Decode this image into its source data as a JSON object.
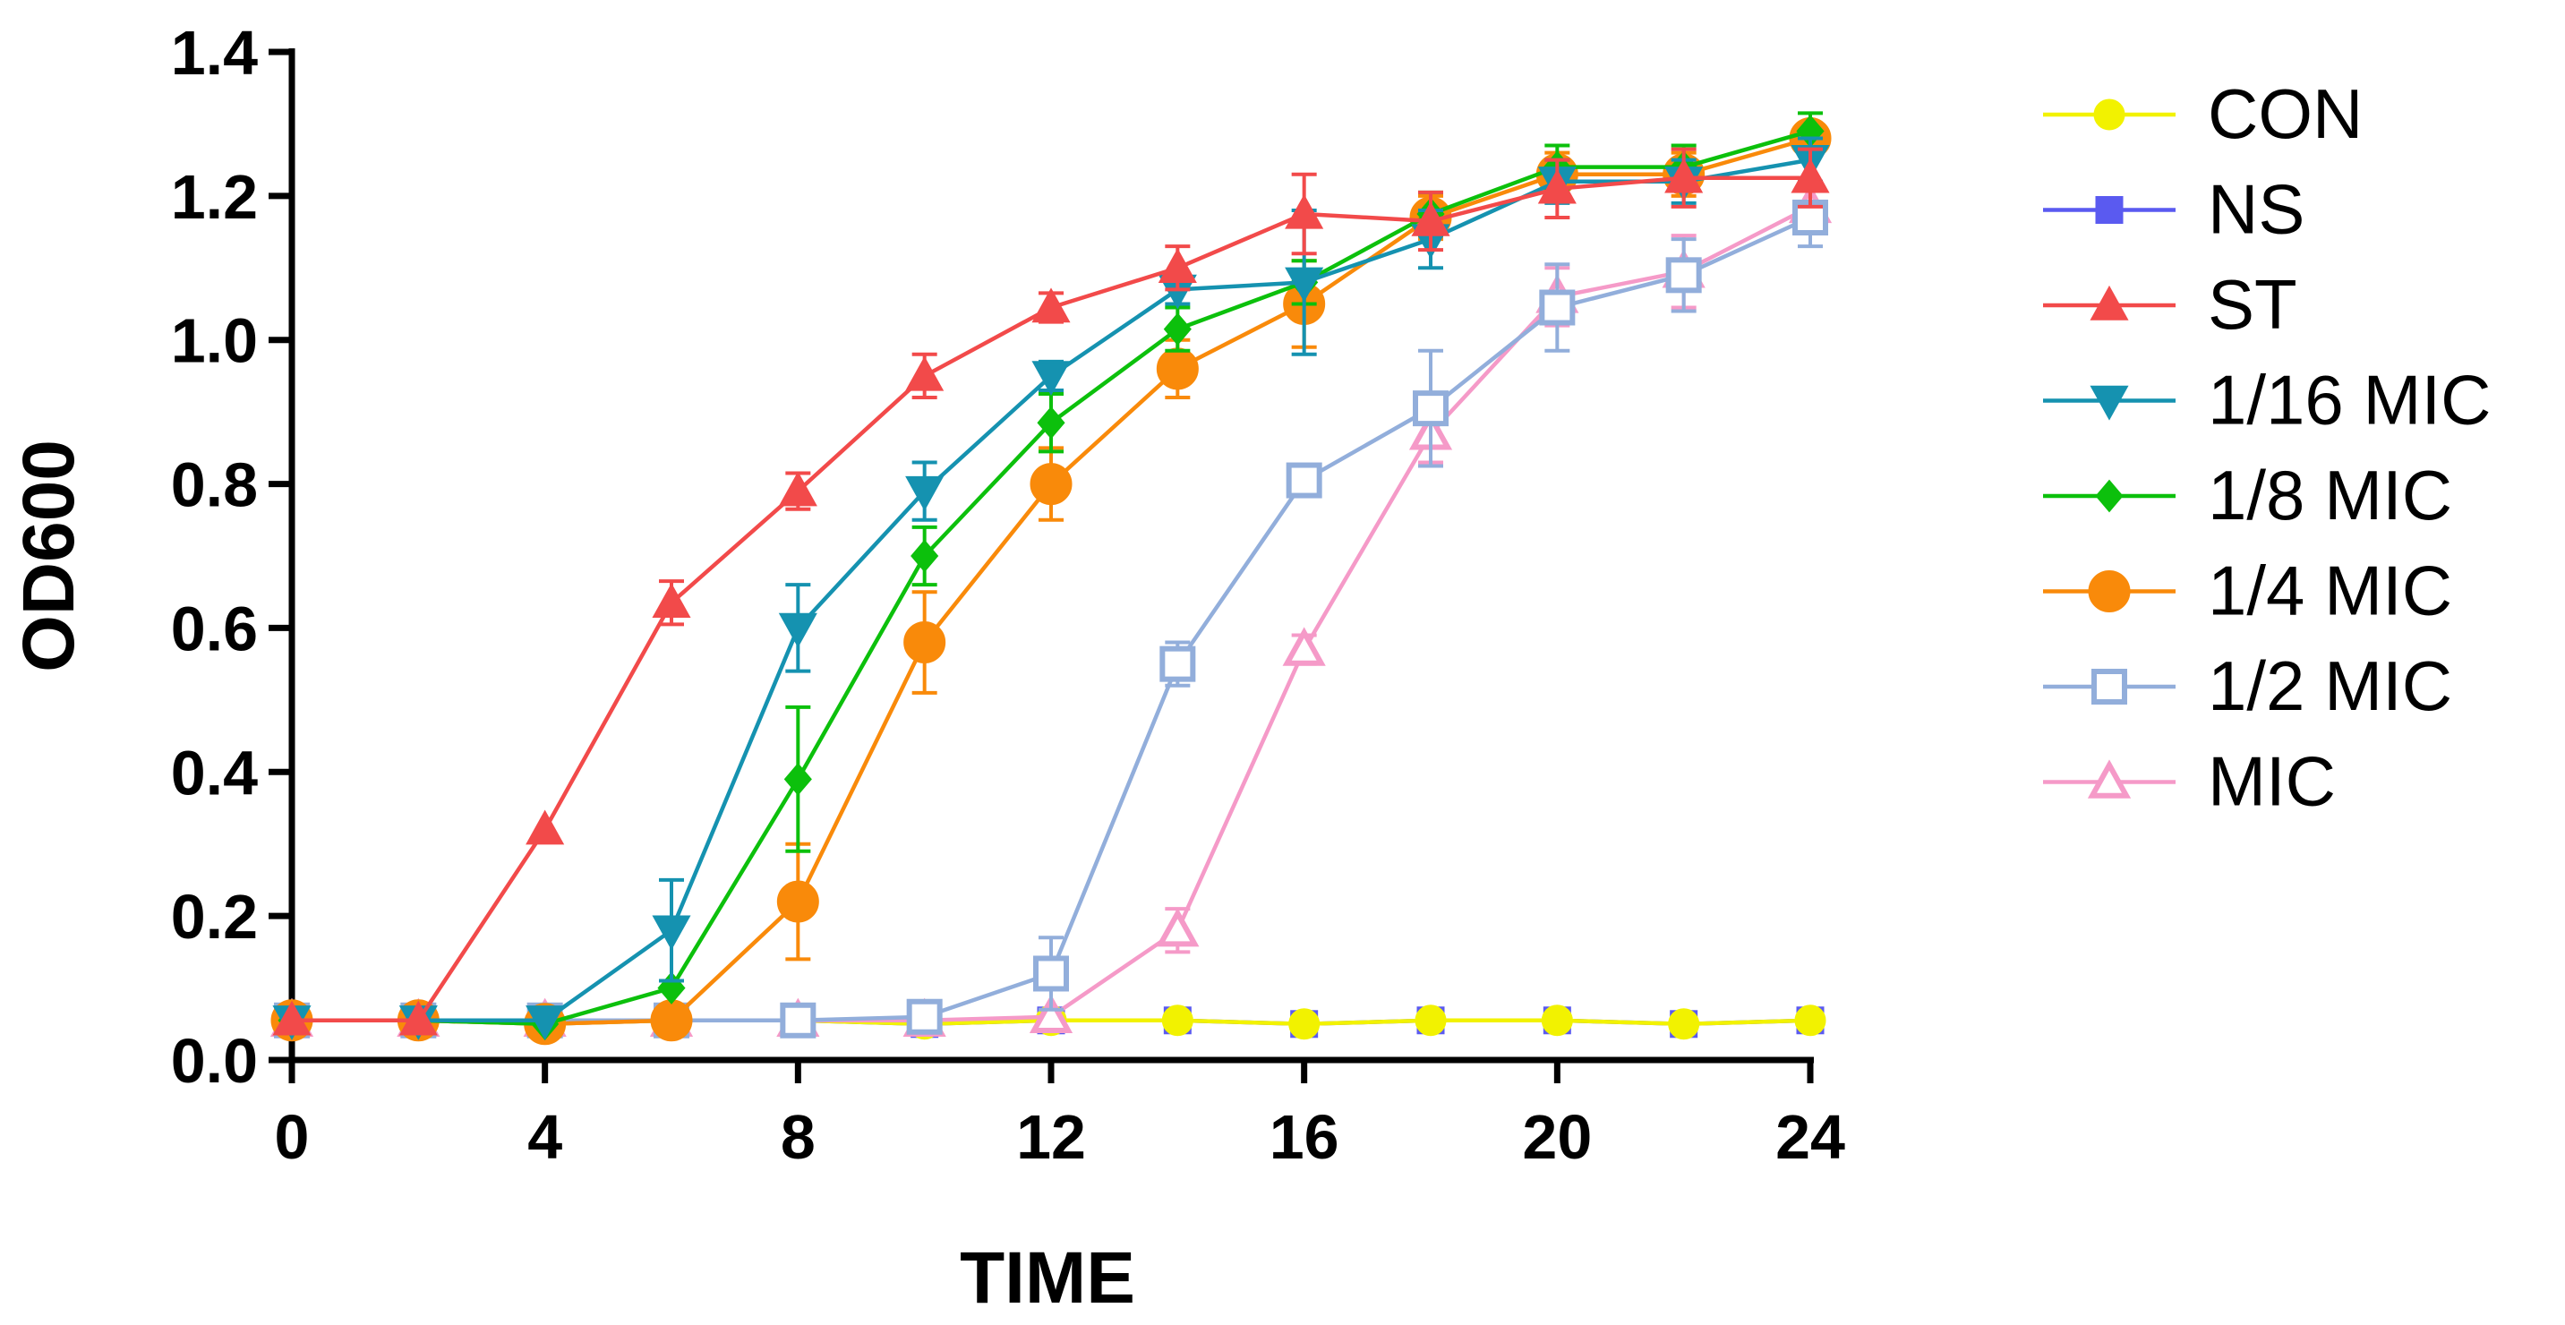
{
  "chart_data": {
    "type": "line",
    "title": "",
    "xlabel": "TIME",
    "ylabel": "OD600",
    "xlim": [
      0,
      24
    ],
    "ylim": [
      0,
      1.4
    ],
    "xticks": [
      "0",
      "4",
      "8",
      "12",
      "16",
      "20",
      "24"
    ],
    "yticks": [
      "0.0",
      "0.2",
      "0.4",
      "0.6",
      "0.8",
      "1.0",
      "1.2",
      "1.4"
    ],
    "x": [
      0,
      2,
      4,
      6,
      8,
      10,
      12,
      14,
      16,
      18,
      20,
      22,
      24
    ],
    "legend_position": "right",
    "series": [
      {
        "name": "NS",
        "color": "#5a5af0",
        "marker": "square",
        "filled": true,
        "values": [
          0.055,
          0.055,
          0.05,
          0.055,
          0.055,
          0.05,
          0.055,
          0.055,
          0.05,
          0.055,
          0.055,
          0.05,
          0.055
        ],
        "errors": [
          0.01,
          0.01,
          0.01,
          0.01,
          0.01,
          0.01,
          0.01,
          0.01,
          0.01,
          0.01,
          0.01,
          0.01,
          0.01
        ]
      },
      {
        "name": "CON",
        "color": "#f2f200",
        "marker": "circle",
        "filled": true,
        "values": [
          0.055,
          0.055,
          0.05,
          0.055,
          0.055,
          0.05,
          0.055,
          0.055,
          0.05,
          0.055,
          0.055,
          0.05,
          0.055
        ],
        "errors": [
          0.005,
          0.005,
          0.005,
          0.005,
          0.005,
          0.005,
          0.005,
          0.005,
          0.005,
          0.005,
          0.005,
          0.005,
          0.005
        ]
      },
      {
        "name": "MIC",
        "color": "#f59ac8",
        "marker": "triangle-up",
        "filled": false,
        "values": [
          0.055,
          0.055,
          0.055,
          0.055,
          0.055,
          0.055,
          0.06,
          0.18,
          0.57,
          0.87,
          1.06,
          1.095,
          1.185
        ],
        "errors": [
          0.005,
          0.005,
          0.005,
          0.005,
          0.005,
          0.005,
          0.005,
          0.03,
          0.02,
          0.04,
          0.04,
          0.05,
          0.03
        ]
      },
      {
        "name": "1/2 MIC",
        "color": "#92aedb",
        "marker": "square",
        "filled": false,
        "values": [
          0.055,
          0.055,
          0.055,
          0.055,
          0.055,
          0.06,
          0.12,
          0.55,
          0.805,
          0.905,
          1.045,
          1.09,
          1.17
        ],
        "errors": [
          0.005,
          0.005,
          0.005,
          0.005,
          0.005,
          0.005,
          0.05,
          0.03,
          0.02,
          0.08,
          0.06,
          0.05,
          0.04
        ]
      },
      {
        "name": "1/4 MIC",
        "color": "#f98a0a",
        "marker": "circle",
        "filled": true,
        "values": [
          0.055,
          0.055,
          0.05,
          0.055,
          0.22,
          0.58,
          0.8,
          0.96,
          1.05,
          1.17,
          1.23,
          1.23,
          1.28
        ],
        "errors": [
          0.005,
          0.005,
          0.005,
          0.005,
          0.08,
          0.07,
          0.05,
          0.04,
          0.06,
          0.03,
          0.03,
          0.03,
          0.02
        ]
      },
      {
        "name": "1/8 MIC",
        "color": "#0cc00c",
        "marker": "diamond",
        "filled": true,
        "values": [
          0.055,
          0.055,
          0.05,
          0.1,
          0.39,
          0.7,
          0.885,
          1.015,
          1.08,
          1.175,
          1.24,
          1.24,
          1.29
        ],
        "errors": [
          0.005,
          0.005,
          0.005,
          0.005,
          0.1,
          0.04,
          0.04,
          0.03,
          0.03,
          0.03,
          0.03,
          0.03,
          0.025
        ]
      },
      {
        "name": "1/16 MIC",
        "color": "#1592b0",
        "marker": "triangle-down",
        "filled": true,
        "values": [
          0.055,
          0.055,
          0.055,
          0.18,
          0.6,
          0.79,
          0.95,
          1.07,
          1.08,
          1.14,
          1.22,
          1.22,
          1.25
        ],
        "errors": [
          0.005,
          0.005,
          0.005,
          0.07,
          0.06,
          0.04,
          0.02,
          0.02,
          0.1,
          0.04,
          0.03,
          0.03,
          0.03
        ]
      },
      {
        "name": "ST",
        "color": "#f24a4a",
        "marker": "triangle-up",
        "filled": true,
        "values": [
          0.055,
          0.055,
          0.32,
          0.635,
          0.79,
          0.95,
          1.045,
          1.1,
          1.175,
          1.165,
          1.21,
          1.225,
          1.225
        ],
        "errors": [
          0.005,
          0.005,
          0.005,
          0.03,
          0.025,
          0.03,
          0.02,
          0.03,
          0.055,
          0.04,
          0.04,
          0.04,
          0.04
        ]
      }
    ],
    "legend_order": [
      "CON",
      "NS",
      "ST",
      "1/16 MIC",
      "1/8 MIC",
      "1/4 MIC",
      "1/2 MIC",
      "MIC"
    ]
  }
}
